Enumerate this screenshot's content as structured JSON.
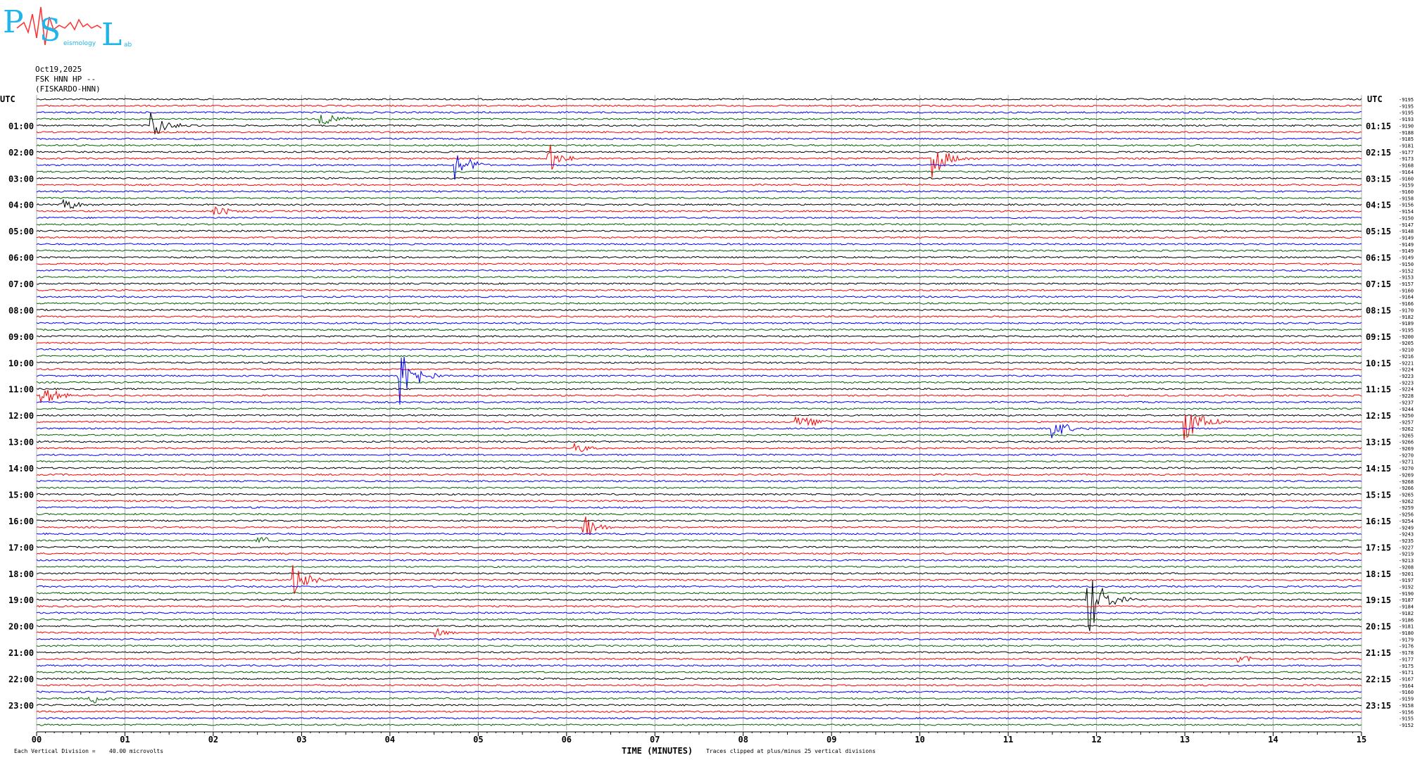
{
  "logo": {
    "big_letters": [
      "P",
      "S",
      "L"
    ],
    "small_words": [
      "eismology",
      "ab"
    ]
  },
  "header": {
    "date": "Oct19,2025",
    "station": "FSK HNN HP --",
    "station_name": "(FISKARDO-HNN)"
  },
  "chart_data": {
    "type": "line",
    "title": "",
    "xlabel": "TIME (MINUTES)",
    "x_range": [
      0,
      15
    ],
    "x_ticks": [
      "00",
      "01",
      "02",
      "03",
      "04",
      "05",
      "06",
      "07",
      "08",
      "09",
      "10",
      "11",
      "12",
      "13",
      "14",
      "15"
    ],
    "trace_count": 96,
    "trace_colors": [
      "#000000",
      "#ff0000",
      "#0000ff",
      "#006400"
    ],
    "left_axis_label": "UTC",
    "right_axis_label": "UTC",
    "left_time_labels": [
      "01:00",
      "02:00",
      "03:00",
      "04:00",
      "05:00",
      "06:00",
      "07:00",
      "08:00",
      "09:00",
      "10:00",
      "11:00",
      "12:00",
      "13:00",
      "14:00",
      "15:00",
      "16:00",
      "17:00",
      "18:00",
      "19:00",
      "20:00",
      "21:00",
      "22:00",
      "23:00"
    ],
    "right_time_labels": [
      "01:15",
      "02:15",
      "03:15",
      "04:15",
      "05:15",
      "06:15",
      "07:15",
      "08:15",
      "09:15",
      "10:15",
      "11:15",
      "12:15",
      "13:15",
      "14:15",
      "15:15",
      "16:15",
      "17:15",
      "18:15",
      "19:15",
      "20:15",
      "21:15",
      "22:15",
      "23:15"
    ],
    "right_offsets": [
      "-9195",
      "-9195",
      "-9195",
      "-9193",
      "-9190",
      "-9188",
      "-9185",
      "-9181",
      "-9177",
      "-9173",
      "-9168",
      "-9164",
      "-9160",
      "-9159",
      "-9160",
      "-9158",
      "-9156",
      "-9154",
      "-9150",
      "-9147",
      "-9148",
      "-9149",
      "-9149",
      "-9149",
      "-9149",
      "-9150",
      "-9152",
      "-9153",
      "-9157",
      "-9160",
      "-9164",
      "-9166",
      "-9170",
      "-9182",
      "-9189",
      "-9195",
      "-9200",
      "-9205",
      "-9210",
      "-9216",
      "-9221",
      "-9224",
      "-9223",
      "-9223",
      "-9224",
      "-9228",
      "-9237",
      "-9244",
      "-9250",
      "-9257",
      "-9262",
      "-9265",
      "-9266",
      "-9269",
      "-9270",
      "-9271",
      "-9270",
      "-9269",
      "-9268",
      "-9266",
      "-9265",
      "-9262",
      "-9259",
      "-9256",
      "-9254",
      "-9249",
      "-9243",
      "-9235",
      "-9227",
      "-9219",
      "-9213",
      "-9208",
      "-9201",
      "-9197",
      "-9192",
      "-9190",
      "-9187",
      "-9184",
      "-9182",
      "-9186",
      "-9181",
      "-9180",
      "-9179",
      "-9176",
      "-9178",
      "-9177",
      "-9175",
      "-9171",
      "-9167",
      "-9164",
      "-9160",
      "-9159",
      "-9158",
      "-9156",
      "-9155",
      "-9152"
    ],
    "events": [
      {
        "trace": 4,
        "minute": 1.3,
        "amplitude": 2.0
      },
      {
        "trace": 3,
        "minute": 3.2,
        "amplitude": 1.5
      },
      {
        "trace": 9,
        "minute": 5.8,
        "amplitude": 2.5
      },
      {
        "trace": 10,
        "minute": 4.75,
        "amplitude": 2.5
      },
      {
        "trace": 9,
        "minute": 10.15,
        "amplitude": 3.0
      },
      {
        "trace": 16,
        "minute": 0.3,
        "amplitude": 1.2
      },
      {
        "trace": 17,
        "minute": 2.0,
        "amplitude": 1.0
      },
      {
        "trace": 42,
        "minute": 4.1,
        "amplitude": 6.0
      },
      {
        "trace": 45,
        "minute": 0.05,
        "amplitude": 2.0
      },
      {
        "trace": 49,
        "minute": 8.6,
        "amplitude": 2.0
      },
      {
        "trace": 50,
        "minute": 11.5,
        "amplitude": 2.0
      },
      {
        "trace": 49,
        "minute": 13.0,
        "amplitude": 4.0
      },
      {
        "trace": 53,
        "minute": 6.1,
        "amplitude": 1.0
      },
      {
        "trace": 65,
        "minute": 6.2,
        "amplitude": 2.0
      },
      {
        "trace": 67,
        "minute": 2.5,
        "amplitude": 0.8
      },
      {
        "trace": 73,
        "minute": 2.9,
        "amplitude": 2.5
      },
      {
        "trace": 76,
        "minute": 11.9,
        "amplitude": 6.0
      },
      {
        "trace": 81,
        "minute": 4.5,
        "amplitude": 0.8
      },
      {
        "trace": 91,
        "minute": 0.6,
        "amplitude": 1.2
      },
      {
        "trace": 85,
        "minute": 13.6,
        "amplitude": 0.8
      }
    ]
  },
  "footer": {
    "scale_left": "Each Vertical Division =",
    "scale_value": "40.00 microvolts",
    "clip_note": "Traces clipped at plus/minus 25 vertical divisions"
  }
}
